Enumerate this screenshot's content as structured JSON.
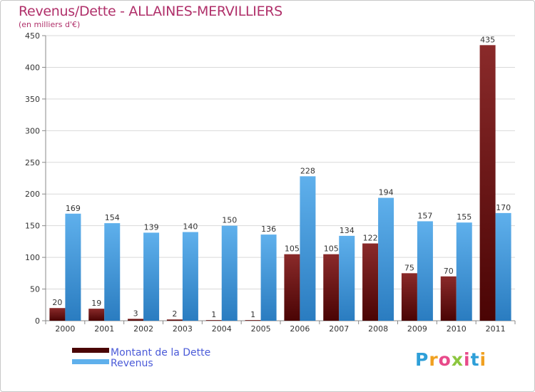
{
  "header": {
    "title": "Revenus/Dette - ALLAINES-MERVILLIERS",
    "subtitle": "(en milliers d'€)"
  },
  "logo": {
    "letters": [
      "P",
      "r",
      "o",
      "x",
      "i",
      "t",
      "i"
    ]
  },
  "colors": {
    "debt_top": "#8a2a2a",
    "debt_bottom": "#4a0404",
    "revenue_top": "#5fb0ec",
    "revenue_bottom": "#2a7cc0",
    "grid": "#d9d9d9",
    "axis": "#888888"
  },
  "chart_data": {
    "type": "bar",
    "title": "Revenus/Dette - ALLAINES-MERVILLIERS",
    "ylabel": "(en milliers d'€)",
    "xlabel": "",
    "ylim": [
      0,
      450
    ],
    "yticks": [
      0,
      50,
      100,
      150,
      200,
      250,
      300,
      350,
      400,
      450
    ],
    "grid": true,
    "legend": "bottom-left",
    "categories": [
      "2000",
      "2001",
      "2002",
      "2003",
      "2004",
      "2005",
      "2006",
      "2007",
      "2008",
      "2009",
      "2010",
      "2011"
    ],
    "series": [
      {
        "name": "Montant de la Dette",
        "values": [
          20,
          19,
          3,
          2,
          1,
          1,
          105,
          105,
          122,
          75,
          70,
          435
        ]
      },
      {
        "name": "Revenus",
        "values": [
          169,
          154,
          139,
          140,
          150,
          136,
          228,
          134,
          194,
          157,
          155,
          170
        ]
      }
    ]
  }
}
